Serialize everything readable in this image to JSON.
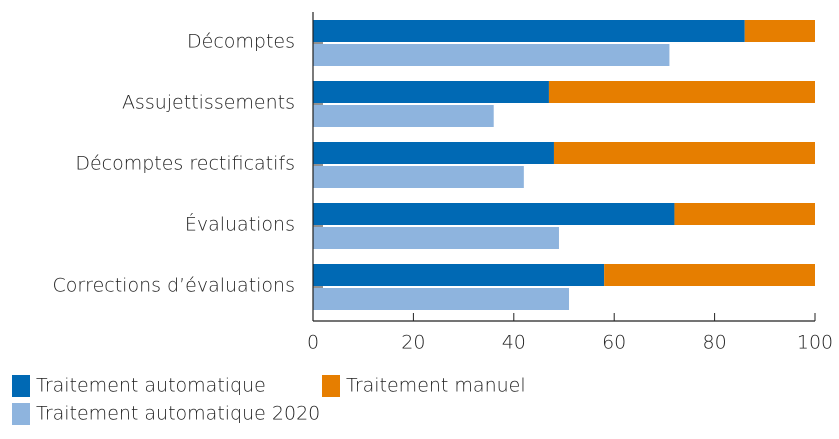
{
  "chart_data": {
    "type": "bar",
    "orientation": "horizontal",
    "categories": [
      "Décomptes",
      "Assujettissements",
      "Décomptes rectificatifs",
      "Évaluations",
      "Corrections d’évaluations"
    ],
    "series": [
      {
        "name": "Traitement automatique",
        "color": "#0069b4",
        "values": [
          86,
          47,
          48,
          72,
          58
        ]
      },
      {
        "name": "Traitement manuel",
        "color": "#e67e00",
        "values": [
          14,
          53,
          52,
          28,
          42
        ]
      },
      {
        "name": "Traitement automatique 2020",
        "color": "#8eb4de",
        "values": [
          71,
          36,
          42,
          49,
          51
        ]
      }
    ],
    "xlim": [
      0,
      100
    ],
    "xticks": [
      0,
      20,
      40,
      60,
      80,
      100
    ]
  }
}
